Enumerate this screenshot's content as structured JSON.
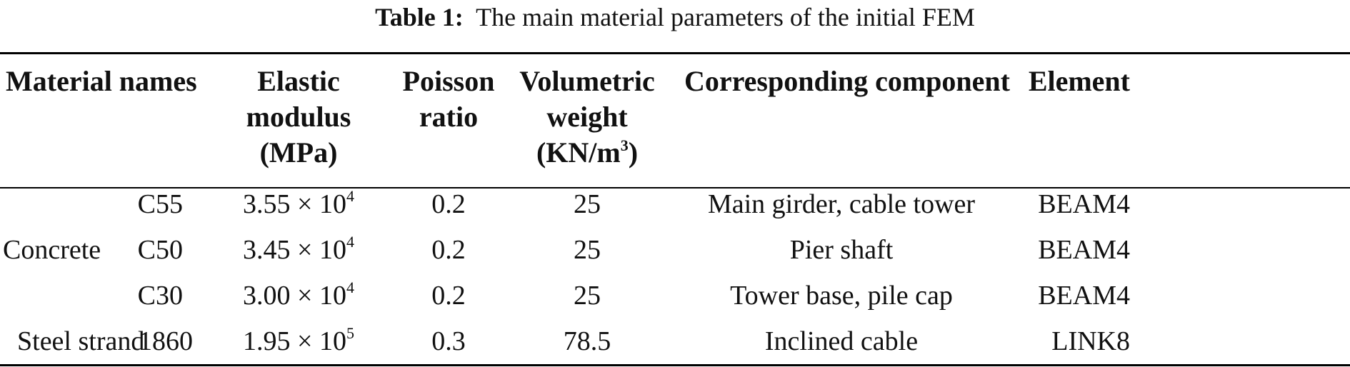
{
  "caption": {
    "label": "Table 1:",
    "text": "The main material parameters of the initial FEM"
  },
  "headers": {
    "material_names": "Material names",
    "elastic_l1": "Elastic",
    "elastic_l2": "modulus",
    "elastic_l3": "(MPa)",
    "poisson_l1": "Poisson",
    "poisson_l2": "ratio",
    "volumetric_l1": "Volumetric",
    "volumetric_l2": "weight",
    "volumetric_l3_base": "(KN/m",
    "volumetric_l3_exp": "3",
    "volumetric_l3_end": ")",
    "component": "Corresponding component",
    "element": "Element"
  },
  "group_labels": {
    "concrete": "Concrete",
    "steel": "Steel strand"
  },
  "rows": [
    {
      "grade": "C55",
      "modulus_base": "3.55 × 10",
      "modulus_exp": "4",
      "poisson": "0.2",
      "weight": "25",
      "component": "Main girder, cable tower",
      "element": "BEAM4"
    },
    {
      "grade": "C50",
      "modulus_base": "3.45 × 10",
      "modulus_exp": "4",
      "poisson": "0.2",
      "weight": "25",
      "component": "Pier shaft",
      "element": "BEAM4"
    },
    {
      "grade": "C30",
      "modulus_base": "3.00 × 10",
      "modulus_exp": "4",
      "poisson": "0.2",
      "weight": "25",
      "component": "Tower base, pile cap",
      "element": "BEAM4"
    },
    {
      "grade": "1860",
      "modulus_base": "1.95 × 10",
      "modulus_exp": "5",
      "poisson": "0.3",
      "weight": "78.5",
      "component": "Inclined cable",
      "element": "LINK8"
    }
  ]
}
